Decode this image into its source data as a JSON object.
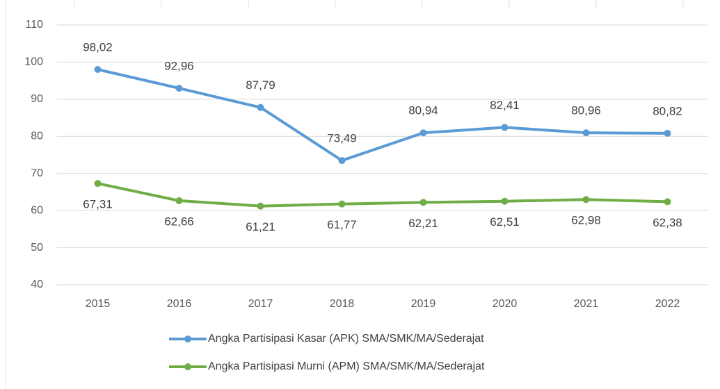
{
  "chart_data": {
    "type": "line",
    "categories": [
      "2015",
      "2016",
      "2017",
      "2018",
      "2019",
      "2020",
      "2021",
      "2022"
    ],
    "series": [
      {
        "name": "Angka Partisipasi Kasar (APK) SMA/SMK/MA/Sederajat",
        "color": "#5b9bd5",
        "values": [
          98.02,
          92.96,
          87.79,
          73.49,
          80.94,
          82.41,
          80.96,
          80.82
        ],
        "value_labels": [
          "98,02",
          "92,96",
          "87,79",
          "73,49",
          "80,94",
          "82,41",
          "80,96",
          "80,82"
        ]
      },
      {
        "name": "Angka Partisipasi Murni (APM) SMA/SMK/MA/Sederajat",
        "color": "#70ad47",
        "values": [
          67.31,
          62.66,
          61.21,
          61.77,
          62.21,
          62.51,
          62.98,
          62.38
        ],
        "value_labels": [
          "67,31",
          "62,66",
          "61,21",
          "61,77",
          "62,21",
          "62,51",
          "62,98",
          "62,38"
        ]
      }
    ],
    "ylim": [
      40,
      110
    ],
    "yticks": [
      40,
      50,
      60,
      70,
      80,
      90,
      100,
      110
    ],
    "grid": true,
    "legend": "bottom"
  }
}
